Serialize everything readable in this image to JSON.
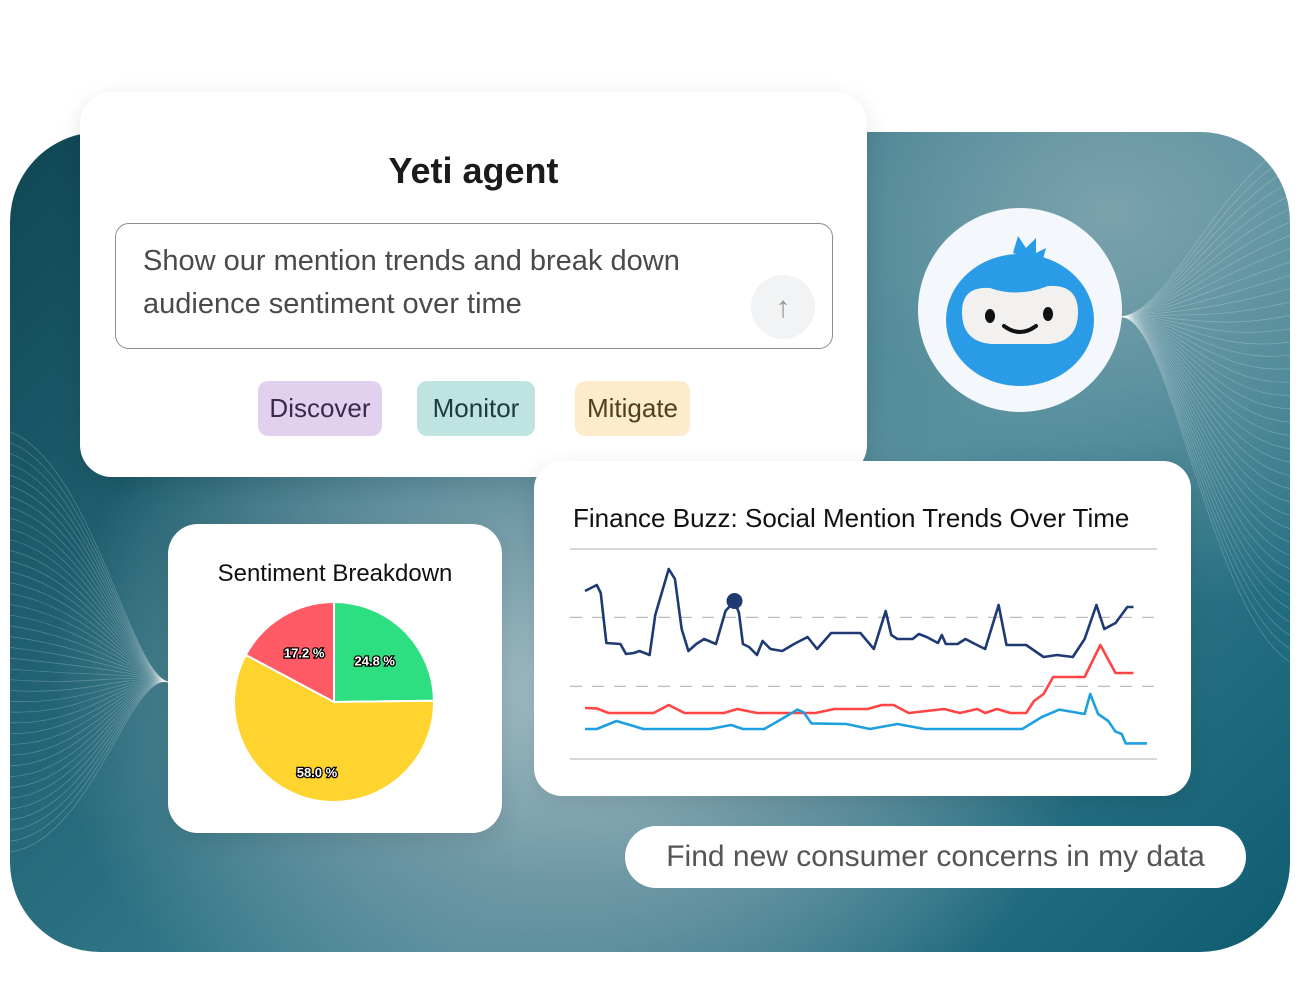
{
  "agent_card": {
    "title": "Yeti agent",
    "prompt": "Show our mention trends and break down audience sentiment over time",
    "send_icon": "arrow-up-icon",
    "chips": [
      {
        "label": "Discover",
        "color": "#e2d1ee"
      },
      {
        "label": "Monitor",
        "color": "#bfe3e0"
      },
      {
        "label": "Mitigate",
        "color": "#fdebcc"
      }
    ]
  },
  "avatar": {
    "icon": "yeti-mascot-icon",
    "color": "#2a9be6"
  },
  "suggestion": "Find new consumer concerns in my data",
  "chart_data": [
    {
      "type": "pie",
      "title": "Sentiment Breakdown",
      "slices": [
        {
          "label": "24.8 %",
          "value": 24.8,
          "color": "#2ddf80"
        },
        {
          "label": "58.0 %",
          "value": 58.0,
          "color": "#ffd42f"
        },
        {
          "label": "17.2 %",
          "value": 17.2,
          "color": "#ff5b66"
        }
      ]
    },
    {
      "type": "line",
      "title": "Finance Buzz: Social Mention Trends Over Time",
      "xlim": [
        0,
        100
      ],
      "ylim": [
        0,
        105
      ],
      "reference_lines": [
        70.8,
        36.3
      ],
      "highlight_point": {
        "series": 0,
        "x": 26.6,
        "y": 79
      },
      "series": [
        {
          "color": "#1f3a73",
          "points": [
            [
              0,
              84
            ],
            [
              2.1,
              87
            ],
            [
              2.8,
              83
            ],
            [
              3.8,
              58
            ],
            [
              6.3,
              57.5
            ],
            [
              7.3,
              52.5
            ],
            [
              8.7,
              53
            ],
            [
              9.7,
              54
            ],
            [
              11.5,
              52
            ],
            [
              12.5,
              72
            ],
            [
              14.9,
              95
            ],
            [
              16,
              90
            ],
            [
              17.2,
              65
            ],
            [
              18.4,
              54
            ],
            [
              19.8,
              57.5
            ],
            [
              21.2,
              60
            ],
            [
              23.3,
              57.5
            ],
            [
              25,
              74
            ],
            [
              26.6,
              79
            ],
            [
              27.4,
              73
            ],
            [
              28.1,
              57.5
            ],
            [
              29.2,
              56
            ],
            [
              30.6,
              52
            ],
            [
              31.6,
              59
            ],
            [
              33,
              55
            ],
            [
              35.1,
              54
            ],
            [
              37.2,
              57.5
            ],
            [
              39.6,
              61
            ],
            [
              41.3,
              55
            ],
            [
              43.8,
              63
            ],
            [
              49,
              63
            ],
            [
              51.4,
              55
            ],
            [
              53.5,
              74
            ],
            [
              54.5,
              62
            ],
            [
              55.6,
              60
            ],
            [
              58.3,
              60
            ],
            [
              59.4,
              62.5
            ],
            [
              60.8,
              61
            ],
            [
              62.8,
              58
            ],
            [
              63.5,
              62
            ],
            [
              64.2,
              57.5
            ],
            [
              66.3,
              57.5
            ],
            [
              67.7,
              60
            ],
            [
              69.4,
              57.5
            ],
            [
              71.2,
              55
            ],
            [
              73.6,
              77
            ],
            [
              75,
              57
            ],
            [
              78.5,
              57
            ],
            [
              81.6,
              51
            ],
            [
              84,
              52
            ],
            [
              86.8,
              51
            ],
            [
              88.9,
              60
            ],
            [
              91,
              77
            ],
            [
              92.4,
              65
            ],
            [
              94.4,
              68
            ],
            [
              96.5,
              76
            ],
            [
              97.6,
              76
            ]
          ]
        },
        {
          "color": "#ff4545",
          "points": [
            [
              0,
              25.5
            ],
            [
              2.1,
              25.3
            ],
            [
              4.2,
              23
            ],
            [
              12.2,
              23
            ],
            [
              14.9,
              27
            ],
            [
              17.7,
              23
            ],
            [
              24.7,
              23
            ],
            [
              27.1,
              25
            ],
            [
              30.6,
              23
            ],
            [
              41,
              23
            ],
            [
              44.4,
              25
            ],
            [
              50.3,
              25
            ],
            [
              52.8,
              27
            ],
            [
              54.9,
              27
            ],
            [
              57.6,
              23
            ],
            [
              63.9,
              25
            ],
            [
              66.7,
              23
            ],
            [
              69.8,
              25
            ],
            [
              71.2,
              23
            ],
            [
              73.3,
              25
            ],
            [
              75.7,
              23
            ],
            [
              78.5,
              23
            ],
            [
              79.9,
              29
            ],
            [
              81.6,
              32.5
            ],
            [
              83.3,
              41
            ],
            [
              88.9,
              41
            ],
            [
              91.7,
              57
            ],
            [
              94.4,
              43
            ],
            [
              97.6,
              43
            ]
          ]
        },
        {
          "color": "#1ea0e0",
          "points": [
            [
              0,
              15
            ],
            [
              2.1,
              15
            ],
            [
              5.6,
              19
            ],
            [
              10.4,
              15
            ],
            [
              22.2,
              15
            ],
            [
              26,
              17
            ],
            [
              28.1,
              15
            ],
            [
              31.9,
              15
            ],
            [
              34.7,
              19.5
            ],
            [
              37.8,
              24.7
            ],
            [
              38.9,
              23.3
            ],
            [
              40.3,
              17.8
            ],
            [
              46.5,
              17.5
            ],
            [
              50.7,
              15
            ],
            [
              55.6,
              17.5
            ],
            [
              60.4,
              15
            ],
            [
              77.8,
              15
            ],
            [
              81.3,
              21
            ],
            [
              84.4,
              24.7
            ],
            [
              88.9,
              22.5
            ],
            [
              89.9,
              32.5
            ],
            [
              91.3,
              22.5
            ],
            [
              93.1,
              19
            ],
            [
              94.4,
              13.7
            ],
            [
              95.5,
              12.5
            ],
            [
              96.2,
              7.8
            ],
            [
              100,
              7.8
            ]
          ]
        }
      ]
    }
  ]
}
